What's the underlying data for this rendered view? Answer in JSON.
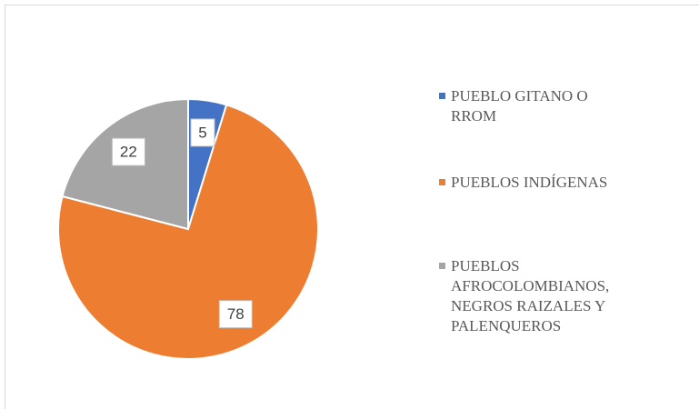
{
  "chart_data": {
    "type": "pie",
    "categories": [
      "PUEBLO GITANO O RROM",
      "PUEBLOS INDÍGENAS",
      "PUEBLOS AFROCOLOMBIANOS, NEGROS RAIZALES Y PALENQUEROS"
    ],
    "values": [
      5,
      78,
      22
    ],
    "colors": [
      "#4472c4",
      "#ed7d31",
      "#a5a5a5"
    ],
    "legend": "right"
  }
}
